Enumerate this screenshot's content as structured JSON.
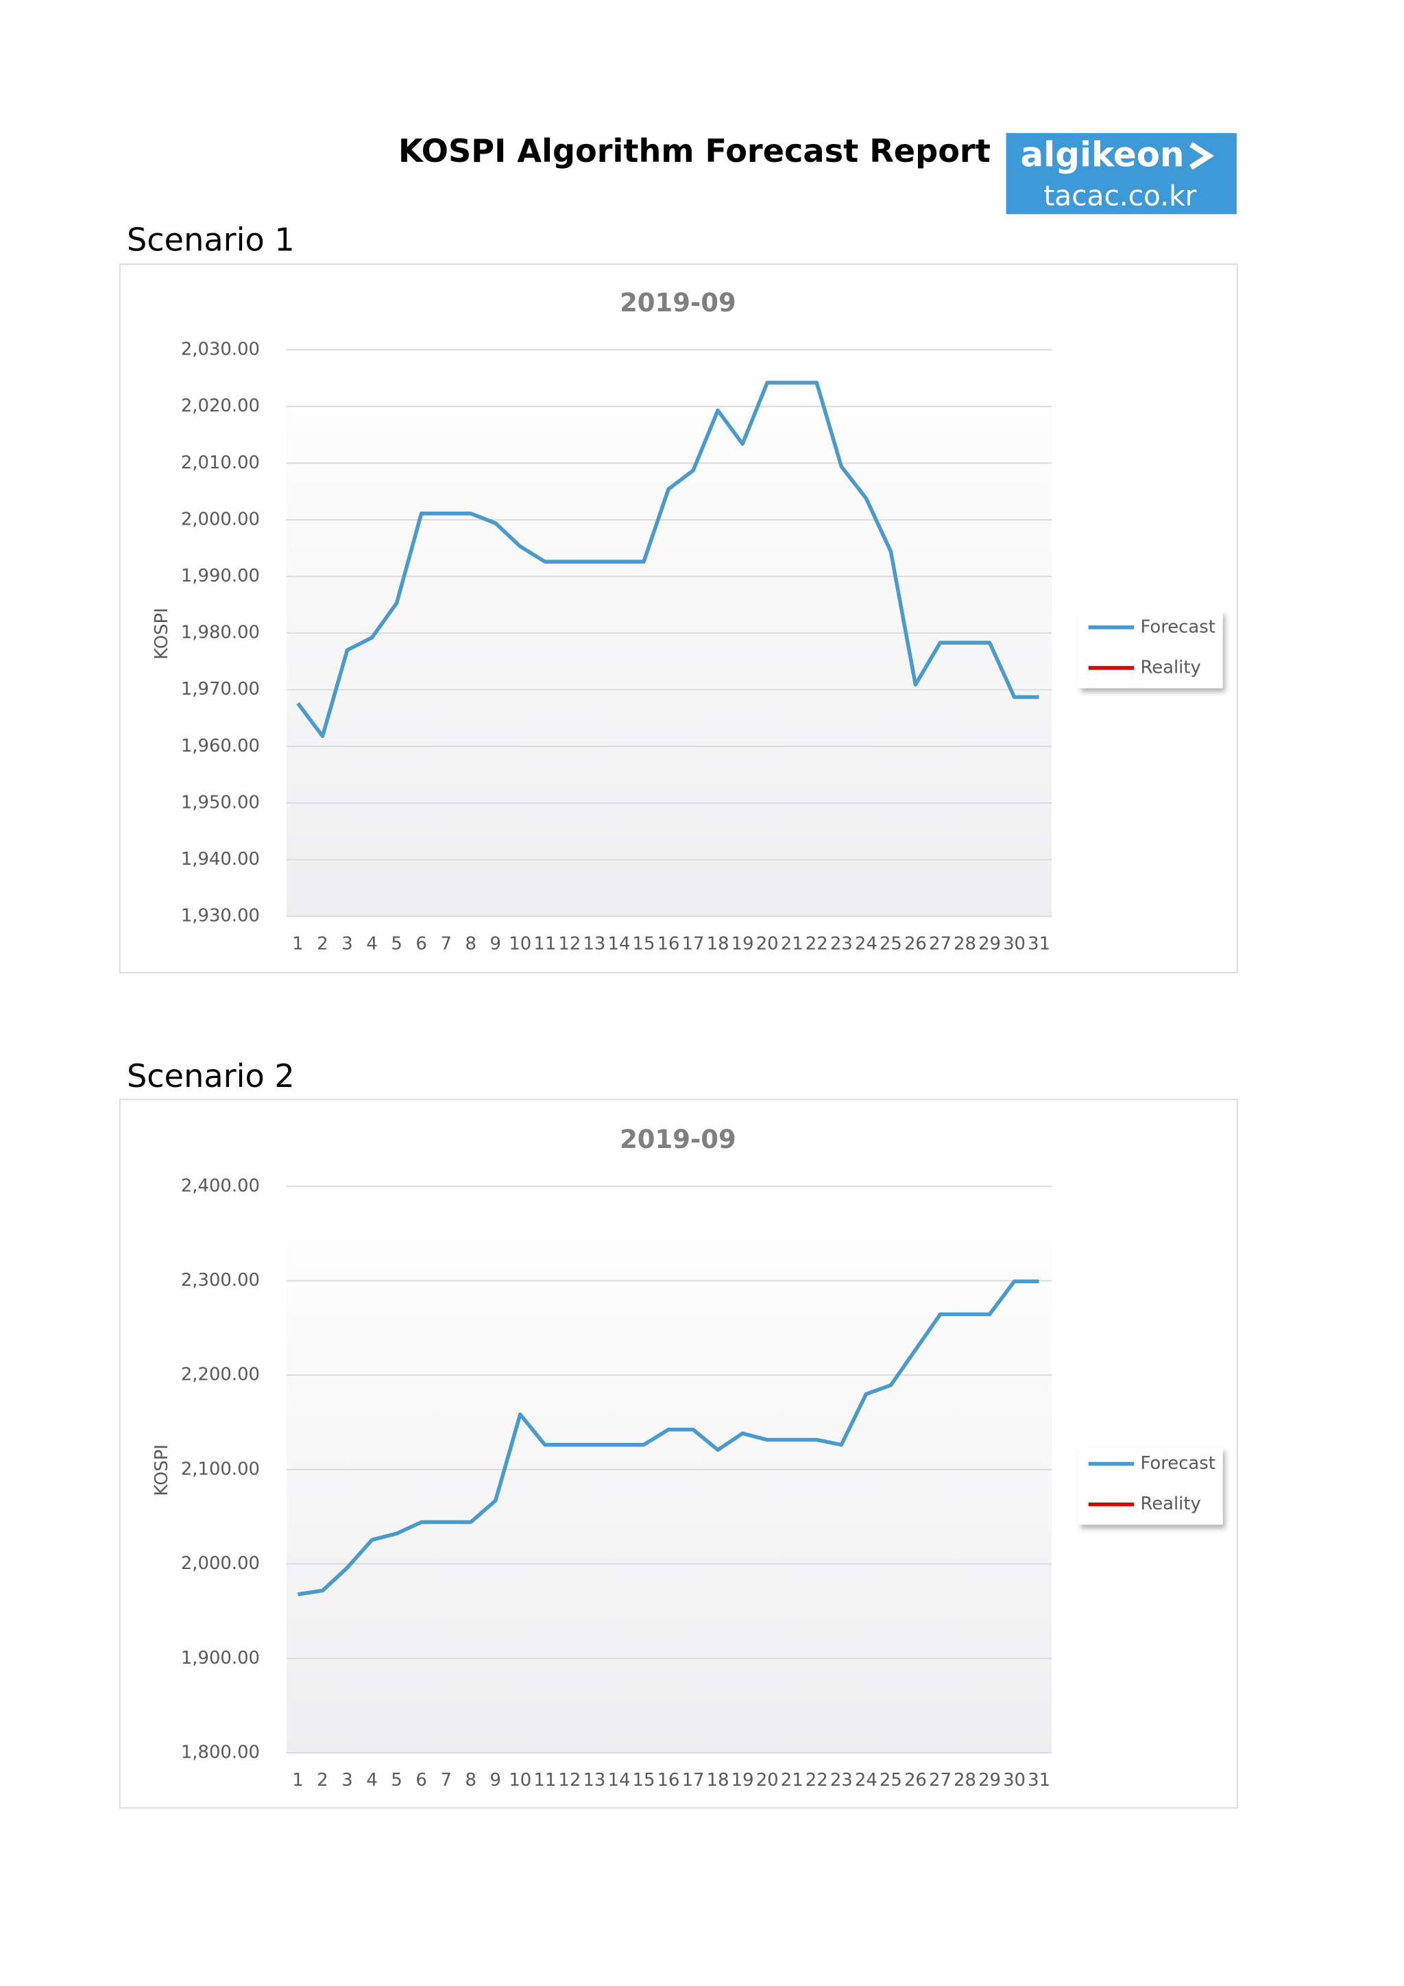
{
  "header": {
    "title": "KOSPI Algorithm Forecast Report",
    "logo_name": "algikeon",
    "logo_url": "tacac.co.kr"
  },
  "sections": [
    "Scenario 1",
    "Scenario 2"
  ],
  "chart_data": [
    {
      "type": "line",
      "title": "2019-09",
      "y_label": "KOSPI",
      "categories": [
        "1",
        "2",
        "3",
        "4",
        "5",
        "6",
        "7",
        "8",
        "9",
        "10",
        "11",
        "12",
        "13",
        "14",
        "15",
        "16",
        "17",
        "18",
        "19",
        "20",
        "21",
        "22",
        "23",
        "24",
        "25",
        "26",
        "27",
        "28",
        "29",
        "30",
        "31"
      ],
      "series": [
        {
          "name": "Forecast",
          "color": "#4a9acb",
          "values": [
            1967.6,
            1961.8,
            1977,
            1979.2,
            1985.3,
            2001.1,
            2001.1,
            2001.1,
            1999.4,
            1995.3,
            1992.6,
            1992.6,
            1992.6,
            1992.6,
            1992.6,
            2005.4,
            2008.7,
            2019.3,
            2013.4,
            2024.2,
            2024.2,
            2024.2,
            2009.4,
            2003.8,
            1994.4,
            1970.9,
            1978.3,
            1978.3,
            1978.3,
            1968.7,
            1968.7
          ]
        },
        {
          "name": "Reality",
          "color": "#e00000",
          "values": [
            null,
            null,
            null,
            null,
            null,
            null,
            null,
            null,
            null,
            null,
            null,
            null,
            null,
            null,
            null,
            null,
            null,
            null,
            null,
            null,
            null,
            null,
            null,
            null,
            null,
            null,
            null,
            null,
            null,
            null,
            null
          ]
        }
      ],
      "ylim": [
        1930,
        2030
      ],
      "yticks": [
        {
          "value": 1930,
          "label": "1,930.00"
        },
        {
          "value": 1940,
          "label": "1,940.00"
        },
        {
          "value": 1950,
          "label": "1,950.00"
        },
        {
          "value": 1960,
          "label": "1,960.00"
        },
        {
          "value": 1970,
          "label": "1,970.00"
        },
        {
          "value": 1980,
          "label": "1,980.00"
        },
        {
          "value": 1990,
          "label": "1,990.00"
        },
        {
          "value": 2000,
          "label": "2,000.00"
        },
        {
          "value": 2010,
          "label": "2,010.00"
        },
        {
          "value": 2020,
          "label": "2,020.00"
        },
        {
          "value": 2030,
          "label": "2,030.00"
        }
      ],
      "grid": true,
      "legend": "right"
    },
    {
      "type": "line",
      "title": "2019-09",
      "y_label": "KOSPI",
      "categories": [
        "1",
        "2",
        "3",
        "4",
        "5",
        "6",
        "7",
        "8",
        "9",
        "10",
        "11",
        "12",
        "13",
        "14",
        "15",
        "16",
        "17",
        "18",
        "19",
        "20",
        "21",
        "22",
        "23",
        "24",
        "25",
        "26",
        "27",
        "28",
        "29",
        "30",
        "31"
      ],
      "series": [
        {
          "name": "Forecast",
          "color": "#4a9acb",
          "values": [
            1967.8,
            1971.8,
            1996,
            2025.5,
            2032.2,
            2044.3,
            2044.3,
            2044.3,
            2067.1,
            2158.4,
            2126.2,
            2126.2,
            2126.2,
            2126.2,
            2126.2,
            2142.3,
            2142.3,
            2120.8,
            2138.3,
            2131.5,
            2131.5,
            2131.5,
            2126.2,
            2179.9,
            2189.3,
            2226.8,
            2264.4,
            2264.4,
            2264.4,
            2299.3,
            2299.3
          ]
        },
        {
          "name": "Reality",
          "color": "#e00000",
          "values": [
            null,
            null,
            null,
            null,
            null,
            null,
            null,
            null,
            null,
            null,
            null,
            null,
            null,
            null,
            null,
            null,
            null,
            null,
            null,
            null,
            null,
            null,
            null,
            null,
            null,
            null,
            null,
            null,
            null,
            null,
            null
          ]
        }
      ],
      "ylim": [
        1800,
        2400
      ],
      "yticks": [
        {
          "value": 1800,
          "label": "1,800.00"
        },
        {
          "value": 1900,
          "label": "1,900.00"
        },
        {
          "value": 2000,
          "label": "2,000.00"
        },
        {
          "value": 2100,
          "label": "2,100.00"
        },
        {
          "value": 2200,
          "label": "2,200.00"
        },
        {
          "value": 2300,
          "label": "2,300.00"
        },
        {
          "value": 2400,
          "label": "2,400.00"
        }
      ],
      "grid": true,
      "legend": "right"
    }
  ]
}
